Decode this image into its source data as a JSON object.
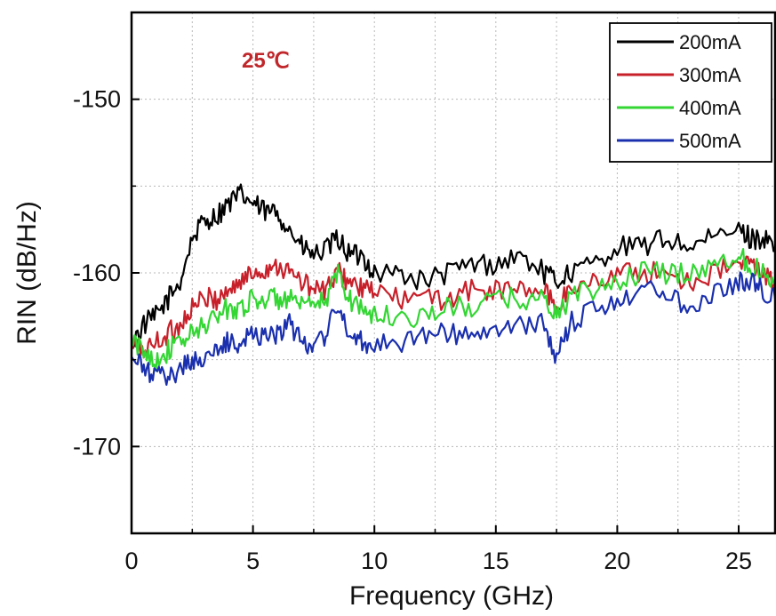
{
  "chart_data": {
    "type": "line",
    "xlabel": "Frequency (GHz)",
    "ylabel": "RIN (dB/Hz)",
    "xlim": [
      0,
      26.5
    ],
    "ylim": [
      -175,
      -145
    ],
    "x_ticks": [
      0,
      5,
      10,
      15,
      20,
      25
    ],
    "y_ticks": [
      -150,
      -160,
      -170
    ],
    "grid": true,
    "legend_position": "top-right",
    "annotation": {
      "text": "25℃",
      "color": "#c0262a"
    },
    "series": [
      {
        "name": "200mA",
        "color": "#000000",
        "x": [
          0,
          0.5,
          1,
          1.5,
          2,
          2.5,
          3,
          3.5,
          4,
          4.5,
          5,
          5.5,
          6,
          6.5,
          7,
          7.5,
          8,
          8.5,
          9,
          9.5,
          10,
          11,
          12,
          13,
          14,
          15,
          16,
          17,
          17.5,
          18,
          19,
          20,
          21,
          22,
          23,
          24,
          25,
          25.5,
          26,
          26.5
        ],
        "y": [
          -164,
          -163,
          -162.5,
          -161.5,
          -160.5,
          -158,
          -157,
          -156.7,
          -156,
          -155.5,
          -156,
          -156.5,
          -156.5,
          -157.5,
          -158.5,
          -159,
          -158.7,
          -158,
          -159,
          -159,
          -160,
          -160,
          -160.5,
          -160,
          -159.5,
          -159.5,
          -159,
          -160,
          -160.5,
          -160,
          -159.5,
          -158.5,
          -158.5,
          -158,
          -158.5,
          -158,
          -157.5,
          -158,
          -158,
          -158.5
        ]
      },
      {
        "name": "300mA",
        "color": "#c8202a",
        "x": [
          0,
          0.5,
          1,
          1.5,
          2,
          2.5,
          3,
          3.5,
          4,
          4.5,
          5,
          5.5,
          6,
          6.5,
          7,
          7.5,
          8,
          8.5,
          9,
          9.5,
          10,
          11,
          12,
          13,
          14,
          15,
          16,
          17,
          17.5,
          18,
          19,
          20,
          21,
          22,
          23,
          24,
          25,
          25.5,
          26,
          26.5
        ],
        "y": [
          -164,
          -164.5,
          -164,
          -163.5,
          -163,
          -162,
          -161.5,
          -161.5,
          -161,
          -160.5,
          -160,
          -159.8,
          -159.5,
          -160,
          -160.5,
          -161,
          -161,
          -160,
          -160.5,
          -161,
          -161,
          -161.5,
          -161.5,
          -161.5,
          -161,
          -161,
          -161,
          -161,
          -162,
          -161,
          -160.5,
          -160,
          -160,
          -160,
          -160.5,
          -160,
          -159.5,
          -159.5,
          -160,
          -160.5
        ]
      },
      {
        "name": "400mA",
        "color": "#33d633",
        "x": [
          0,
          0.5,
          1,
          1.5,
          2,
          2.5,
          3,
          3.5,
          4,
          4.5,
          5,
          5.5,
          6,
          6.5,
          7,
          7.5,
          8,
          8.5,
          9,
          9.5,
          10,
          11,
          12,
          13,
          14,
          15,
          16,
          17,
          17.5,
          18,
          19,
          20,
          21,
          22,
          23,
          24,
          25,
          25.5,
          26,
          26.5
        ],
        "y": [
          -164,
          -164.5,
          -165,
          -164.5,
          -164,
          -163.5,
          -163,
          -162.5,
          -162,
          -162,
          -161.5,
          -161.5,
          -161.5,
          -161.5,
          -162,
          -162,
          -161.5,
          -160,
          -161.5,
          -162,
          -162.5,
          -162.5,
          -162.5,
          -162,
          -162,
          -161.5,
          -161.5,
          -161.5,
          -162.5,
          -161.5,
          -161,
          -160.5,
          -160,
          -160,
          -160,
          -159.5,
          -159,
          -159.5,
          -160,
          -160.5
        ]
      },
      {
        "name": "500mA",
        "color": "#1a2fae",
        "x": [
          0,
          0.5,
          1,
          1.5,
          2,
          2.5,
          3,
          3.5,
          4,
          4.5,
          5,
          5.5,
          6,
          6.5,
          7,
          7.5,
          8,
          8.5,
          9,
          9.5,
          10,
          11,
          12,
          13,
          14,
          15,
          16,
          17,
          17.5,
          18,
          19,
          20,
          21,
          22,
          23,
          24,
          25,
          25.5,
          26,
          26.5
        ],
        "y": [
          -165,
          -165.5,
          -166,
          -166,
          -165.5,
          -165,
          -165,
          -164.5,
          -164,
          -164,
          -163.5,
          -163.5,
          -163.5,
          -163,
          -164,
          -164,
          -163.5,
          -162,
          -163.5,
          -164,
          -164,
          -164,
          -163.5,
          -163.5,
          -163.5,
          -163.5,
          -163,
          -163,
          -165,
          -163,
          -162,
          -161.5,
          -161,
          -161,
          -162,
          -161,
          -160.5,
          -160.5,
          -161,
          -161.5
        ]
      }
    ]
  }
}
